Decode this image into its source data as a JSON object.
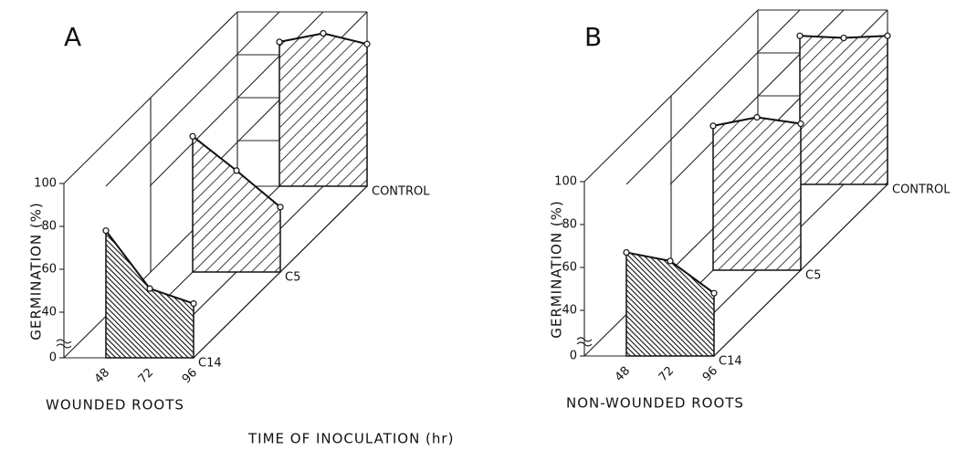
{
  "x_axis_label": "TIME OF INOCULATION (hr)",
  "chart_data": [
    {
      "type": "area3d",
      "panel": "A",
      "subtitle": "WOUNDED ROOTS",
      "y_label": "GERMINATION (%)",
      "categories": [
        "48",
        "72",
        "96"
      ],
      "series": [
        {
          "name": "C14",
          "values": [
            78,
            51,
            44
          ]
        },
        {
          "name": "C5",
          "values": [
            82,
            66,
            49
          ]
        },
        {
          "name": "CONTROL",
          "values": [
            86,
            90,
            85
          ]
        }
      ],
      "ylim": [
        0,
        100
      ],
      "yticks": [
        0,
        40,
        60,
        80,
        100
      ]
    },
    {
      "type": "area3d",
      "panel": "B",
      "subtitle": "NON-WOUNDED ROOTS",
      "y_label": "GERMINATION (%)",
      "categories": [
        "48",
        "72",
        "96"
      ],
      "series": [
        {
          "name": "C14",
          "values": [
            67,
            63,
            48
          ]
        },
        {
          "name": "C5",
          "values": [
            86,
            90,
            87
          ]
        },
        {
          "name": "CONTROL",
          "values": [
            88,
            87,
            88
          ]
        }
      ],
      "ylim": [
        0,
        100
      ],
      "yticks": [
        0,
        40,
        60,
        80,
        100
      ]
    }
  ]
}
